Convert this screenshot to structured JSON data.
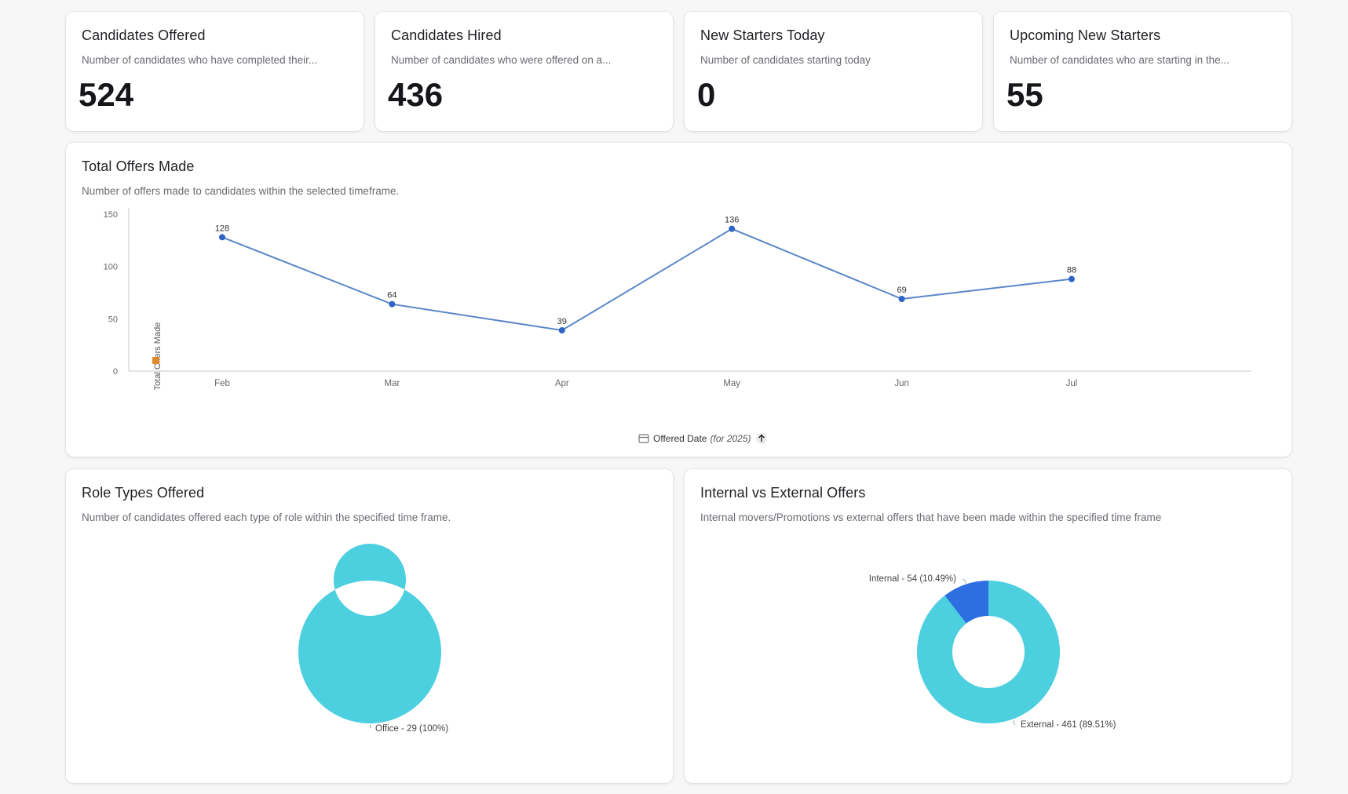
{
  "kpis": [
    {
      "title": "Candidates Offered",
      "subtitle": "Number of candidates who have completed their...",
      "value": "524"
    },
    {
      "title": "Candidates Hired",
      "subtitle": "Number of candidates who were offered on a...",
      "value": "436"
    },
    {
      "title": "New Starters Today",
      "subtitle": "Number of candidates starting today",
      "value": "0"
    },
    {
      "title": "Upcoming New Starters",
      "subtitle": "Number of candidates who are starting in the...",
      "value": "55"
    }
  ],
  "offers_card": {
    "title": "Total Offers Made",
    "subtitle": "Number of offers made to candidates within the selected timeframe.",
    "x_label": "Offered Date",
    "x_label_suffix": "(for 2025)",
    "y_label": "Total Offers Made",
    "sort_icon": "arrow-up-icon",
    "date_icon": "calendar-icon"
  },
  "roles_card": {
    "title": "Role Types Offered",
    "subtitle": "Number of candidates offered each type of role within the specified time frame.",
    "slice_label": "Office - 29 (100%)"
  },
  "internal_card": {
    "title": "Internal vs External Offers",
    "subtitle": "Internal movers/Promotions vs external offers that have been made within the specified time frame",
    "internal_label": "Internal - 54 (10.49%)",
    "external_label": "External - 461 (89.51%)"
  },
  "colors": {
    "line": "#5b87c9",
    "point": "#2f63c4",
    "donut_primary": "#4ccfdf",
    "donut_secondary": "#2d6fe0",
    "axis": "#c9c9cf"
  },
  "chart_data": [
    {
      "type": "line",
      "categories": [
        "Feb",
        "Mar",
        "Apr",
        "May",
        "Jun",
        "Jul"
      ],
      "values": [
        128,
        64,
        39,
        136,
        69,
        88
      ],
      "title": "Total Offers Made",
      "xlabel": "Offered Date (for 2025)",
      "ylabel": "Total Offers Made",
      "ylim": [
        0,
        150
      ],
      "yticks": [
        0,
        50,
        100,
        150
      ],
      "grid": false,
      "data_labels": true
    },
    {
      "type": "pie",
      "variant": "donut",
      "title": "Role Types Offered",
      "categories": [
        "Office"
      ],
      "values": [
        29
      ],
      "percents": [
        100
      ]
    },
    {
      "type": "pie",
      "variant": "donut",
      "title": "Internal vs External Offers",
      "categories": [
        "Internal",
        "External"
      ],
      "values": [
        54,
        461
      ],
      "percents": [
        10.49,
        89.51
      ]
    }
  ]
}
